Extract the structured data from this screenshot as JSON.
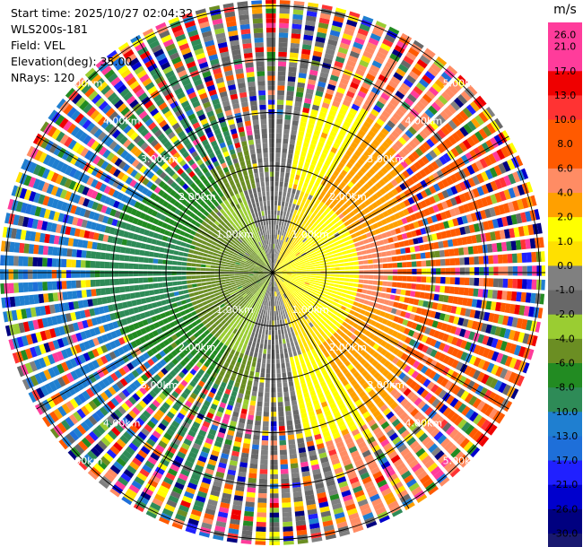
{
  "info": {
    "start_time": "Start time: 2025/10/27 02:04:32",
    "instrument": "WLS200s-181",
    "field": "Field: VEL",
    "elevation": "Elevation(deg): 35.00",
    "nrays": "NRays: 120"
  },
  "chart_data": {
    "type": "ppi",
    "field": "VEL",
    "nrays": 120,
    "elevation_deg": 35.0,
    "range_max_km": 5.5,
    "ring_labels": [
      "1.00km",
      "2.00km",
      "3.00km",
      "4.00km",
      "5.00km"
    ],
    "ring_ranges_km": [
      1,
      2,
      3,
      4,
      5
    ],
    "colorbar": {
      "unit": "m/s",
      "ticks": [
        "26.0",
        "21.0",
        "17.0",
        "13.0",
        "10.0",
        "8.0",
        "6.0",
        "4.0",
        "2.0",
        "1.0",
        "0.0",
        "-1.0",
        "-2.0",
        "-4.0",
        "-6.0",
        "-8.0",
        "-10.0",
        "-13.0",
        "-17.0",
        "-21.0",
        "-26.0",
        "-30.0"
      ],
      "bands": [
        {
          "lo": 26,
          "hi": 30,
          "color": "#ff3c9b"
        },
        {
          "lo": 21,
          "hi": 26,
          "color": "#ff3c9b"
        },
        {
          "lo": 17,
          "hi": 21,
          "color": "#ef0000"
        },
        {
          "lo": 13,
          "hi": 17,
          "color": "#ff3333"
        },
        {
          "lo": 10,
          "hi": 13,
          "color": "#ff5a00"
        },
        {
          "lo": 8,
          "hi": 10,
          "color": "#ff5a00"
        },
        {
          "lo": 6,
          "hi": 8,
          "color": "#ff8c64"
        },
        {
          "lo": 4,
          "hi": 6,
          "color": "#ffa000"
        },
        {
          "lo": 2,
          "hi": 4,
          "color": "#ffff00"
        },
        {
          "lo": 1,
          "hi": 2,
          "color": "#ffe000"
        },
        {
          "lo": 0,
          "hi": 1,
          "color": "#808080"
        },
        {
          "lo": -1,
          "hi": 0,
          "color": "#686868"
        },
        {
          "lo": -2,
          "hi": -1,
          "color": "#9acd32"
        },
        {
          "lo": -4,
          "hi": -2,
          "color": "#6b8e23"
        },
        {
          "lo": -6,
          "hi": -4,
          "color": "#228b22"
        },
        {
          "lo": -8,
          "hi": -6,
          "color": "#2e8b57"
        },
        {
          "lo": -10,
          "hi": -8,
          "color": "#1f7fd0"
        },
        {
          "lo": -13,
          "hi": -10,
          "color": "#1e6fd9"
        },
        {
          "lo": -17,
          "hi": -13,
          "color": "#2020ff"
        },
        {
          "lo": -21,
          "hi": -17,
          "color": "#0000cd"
        },
        {
          "lo": -26,
          "hi": -21,
          "color": "#000080"
        },
        {
          "lo": -30,
          "hi": -26,
          "color": "#191970"
        }
      ]
    },
    "regions": [
      {
        "name": "near-positive-core",
        "range_km": [
          0,
          1.6
        ],
        "azimuth_deg": [
          10,
          170
        ],
        "velocity_ms": 2.5
      },
      {
        "name": "near-negative-core",
        "range_km": [
          0,
          1.6
        ],
        "azimuth_deg": [
          190,
          350
        ],
        "velocity_ms": -2.0
      },
      {
        "name": "noise-outer",
        "range_km": [
          3.0,
          5.5
        ],
        "velocity_ms": "mixed"
      }
    ]
  }
}
